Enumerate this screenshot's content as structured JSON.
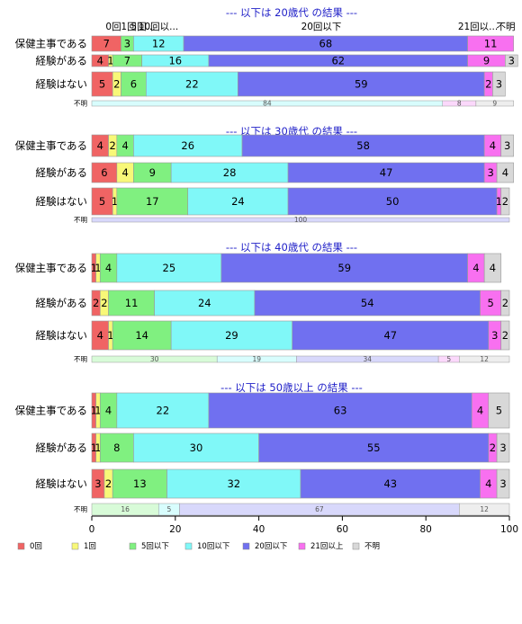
{
  "chart_data": {
    "type": "bar",
    "orientation": "horizontal",
    "stacked": true,
    "xlim": [
      0,
      100
    ],
    "x_ticks": [
      "0",
      "20",
      "40",
      "60",
      "80",
      "100"
    ],
    "legend_position": "bottom-left",
    "series": [
      {
        "name": "0回",
        "color": "#f06464"
      },
      {
        "name": "1回",
        "color": "#f8f878"
      },
      {
        "name": "5回以下",
        "color": "#80f080"
      },
      {
        "name": "10回以下",
        "color": "#80f8f8"
      },
      {
        "name": "20回以下",
        "color": "#7070f0"
      },
      {
        "name": "21回以上",
        "color": "#f870f0"
      },
      {
        "name": "不明",
        "color": "#d8d8d8"
      }
    ],
    "panels": [
      {
        "title": "--- 以下は 20歳代 の結果 ---",
        "top_labels": [
          "0回",
          "1回",
          "5回...",
          "10回以...",
          "20回以下",
          "21回以...",
          "不明"
        ],
        "rows": [
          {
            "label": "保健主事である",
            "values": [
              7,
              0,
              3,
              12,
              68,
              11,
              0
            ]
          },
          {
            "label": "経験がある",
            "values": [
              4,
              1,
              7,
              16,
              62,
              9,
              3
            ]
          },
          {
            "label": "経験はない",
            "values": [
              5,
              2,
              6,
              22,
              59,
              2,
              3
            ]
          }
        ],
        "unknown": {
          "label": "不明",
          "values": [
            0,
            0,
            0,
            84,
            0,
            8,
            9
          ]
        }
      },
      {
        "title": "--- 以下は 30歳代 の結果 ---",
        "rows": [
          {
            "label": "保健主事である",
            "values": [
              4,
              2,
              4,
              26,
              58,
              4,
              3
            ]
          },
          {
            "label": "経験がある",
            "values": [
              6,
              4,
              9,
              28,
              47,
              3,
              4
            ]
          },
          {
            "label": "経験はない",
            "values": [
              5,
              1,
              17,
              24,
              50,
              1,
              2
            ]
          }
        ],
        "unknown": {
          "label": "不明",
          "values": [
            0,
            0,
            0,
            0,
            100,
            0,
            0
          ]
        }
      },
      {
        "title": "--- 以下は 40歳代 の結果 ---",
        "rows": [
          {
            "label": "保健主事である",
            "values": [
              1,
              1,
              4,
              25,
              59,
              4,
              4
            ]
          },
          {
            "label": "経験がある",
            "values": [
              2,
              2,
              11,
              24,
              54,
              5,
              2
            ]
          },
          {
            "label": "経験はない",
            "values": [
              4,
              1,
              14,
              29,
              47,
              3,
              2
            ]
          }
        ],
        "unknown": {
          "label": "不明",
          "values": [
            0,
            0,
            30,
            19,
            34,
            5,
            12
          ]
        }
      },
      {
        "title": "--- 以下は 50歳以上 の結果 ---",
        "rows": [
          {
            "label": "保健主事である",
            "values": [
              1,
              1,
              4,
              22,
              63,
              4,
              5
            ]
          },
          {
            "label": "経験がある",
            "values": [
              1,
              1,
              8,
              30,
              55,
              2,
              3
            ]
          },
          {
            "label": "経験はない",
            "values": [
              3,
              2,
              13,
              32,
              43,
              4,
              3
            ]
          }
        ],
        "unknown": {
          "label": "不明",
          "values": [
            0,
            0,
            16,
            5,
            67,
            0,
            12
          ]
        }
      }
    ]
  }
}
